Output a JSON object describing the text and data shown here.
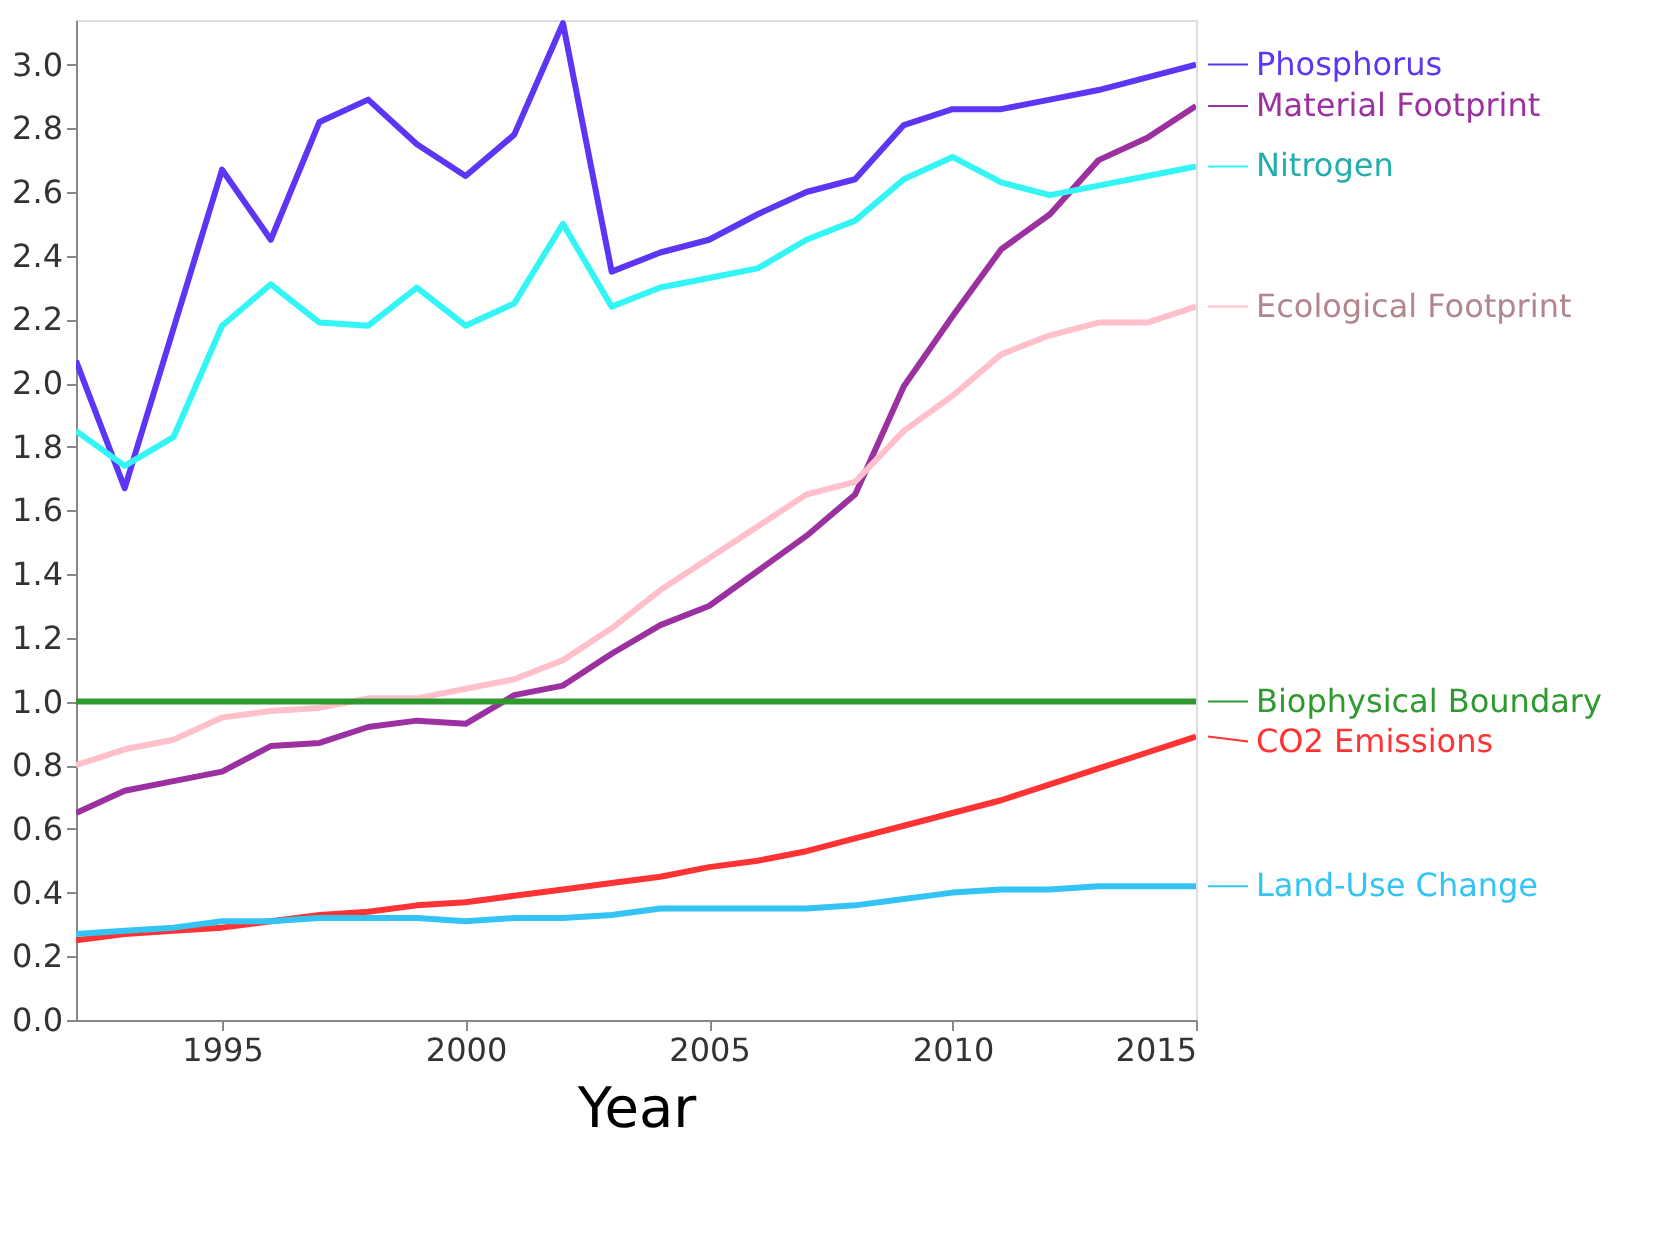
{
  "chart_data": {
    "type": "line",
    "xlabel": "Year",
    "x": [
      1992,
      1993,
      1994,
      1995,
      1996,
      1997,
      1998,
      1999,
      2000,
      2001,
      2002,
      2003,
      2004,
      2005,
      2006,
      2007,
      2008,
      2009,
      2010,
      2011,
      2012,
      2013,
      2014,
      2015
    ],
    "xlim": [
      1992,
      2015
    ],
    "xticks": [
      1995,
      2000,
      2005,
      2010,
      2015
    ],
    "ylim": [
      0,
      3.14
    ],
    "yticks": [
      {
        "value": 0,
        "label": "0.0"
      },
      {
        "value": 0.2,
        "label": "0.2"
      },
      {
        "value": 0.4,
        "label": "0.4"
      },
      {
        "value": 0.6,
        "label": "0.6"
      },
      {
        "value": 0.8,
        "label": "0.8"
      },
      {
        "value": 1,
        "label": "1.0"
      },
      {
        "value": 1.2,
        "label": "1.2"
      },
      {
        "value": 1.4,
        "label": "1.4"
      },
      {
        "value": 1.6,
        "label": "1.6"
      },
      {
        "value": 1.8,
        "label": "1.8"
      },
      {
        "value": 2,
        "label": "2.0"
      },
      {
        "value": 2.2,
        "label": "2.2"
      },
      {
        "value": 2.4,
        "label": "2.4"
      },
      {
        "value": 2.6,
        "label": "2.6"
      },
      {
        "value": 2.8,
        "label": "2.8"
      },
      {
        "value": 3,
        "label": "3.0"
      }
    ],
    "grid": false,
    "legend": "right",
    "marker": "none",
    "line_style": "solid",
    "series": [
      {
        "name": "Phosphorus",
        "color": "#5c35f5",
        "values": [
          2.07,
          1.67,
          2.17,
          2.67,
          2.45,
          2.82,
          2.89,
          2.75,
          2.65,
          2.78,
          3.13,
          2.35,
          2.41,
          2.45,
          2.53,
          2.6,
          2.64,
          2.81,
          2.86,
          2.86,
          2.89,
          2.92,
          2.96,
          3.0
        ]
      },
      {
        "name": "Material Footprint",
        "color": "#9b30a0",
        "values": [
          0.65,
          0.72,
          0.75,
          0.78,
          0.86,
          0.87,
          0.92,
          0.94,
          0.93,
          1.02,
          1.05,
          1.15,
          1.24,
          1.3,
          1.41,
          1.52,
          1.65,
          1.99,
          2.21,
          2.42,
          2.53,
          2.7,
          2.77,
          2.87
        ]
      },
      {
        "name": "Nitrogen",
        "color": "#33f5f5",
        "values": [
          1.85,
          1.74,
          1.83,
          2.18,
          2.31,
          2.19,
          2.18,
          2.3,
          2.18,
          2.25,
          2.5,
          2.24,
          2.3,
          2.33,
          2.36,
          2.45,
          2.51,
          2.64,
          2.71,
          2.63,
          2.59,
          2.62,
          2.65,
          2.68
        ]
      },
      {
        "name": "Ecological Footprint",
        "color": "#ffc0cb",
        "values": [
          0.8,
          0.85,
          0.88,
          0.95,
          0.97,
          0.98,
          1.01,
          1.01,
          1.04,
          1.07,
          1.13,
          1.23,
          1.35,
          1.45,
          1.55,
          1.65,
          1.69,
          1.85,
          1.96,
          2.09,
          2.15,
          2.19,
          2.19,
          2.24
        ]
      },
      {
        "name": "Biophysical Boundary",
        "color": "#2e9a2e",
        "values": [
          1,
          1,
          1,
          1,
          1,
          1,
          1,
          1,
          1,
          1,
          1,
          1,
          1,
          1,
          1,
          1,
          1,
          1,
          1,
          1,
          1,
          1,
          1,
          1
        ]
      },
      {
        "name": "CO2 Emissions",
        "color": "#ff3333",
        "values": [
          0.25,
          0.27,
          0.28,
          0.29,
          0.31,
          0.33,
          0.34,
          0.36,
          0.37,
          0.39,
          0.41,
          0.43,
          0.45,
          0.48,
          0.5,
          0.53,
          0.57,
          0.61,
          0.65,
          0.69,
          0.74,
          0.79,
          0.84,
          0.89
        ]
      },
      {
        "name": "Land-Use Change",
        "color": "#33c4f5",
        "values": [
          0.27,
          0.28,
          0.29,
          0.31,
          0.31,
          0.32,
          0.32,
          0.32,
          0.31,
          0.32,
          0.32,
          0.33,
          0.35,
          0.35,
          0.35,
          0.35,
          0.36,
          0.38,
          0.4,
          0.41,
          0.41,
          0.42,
          0.42,
          0.42
        ]
      }
    ]
  }
}
